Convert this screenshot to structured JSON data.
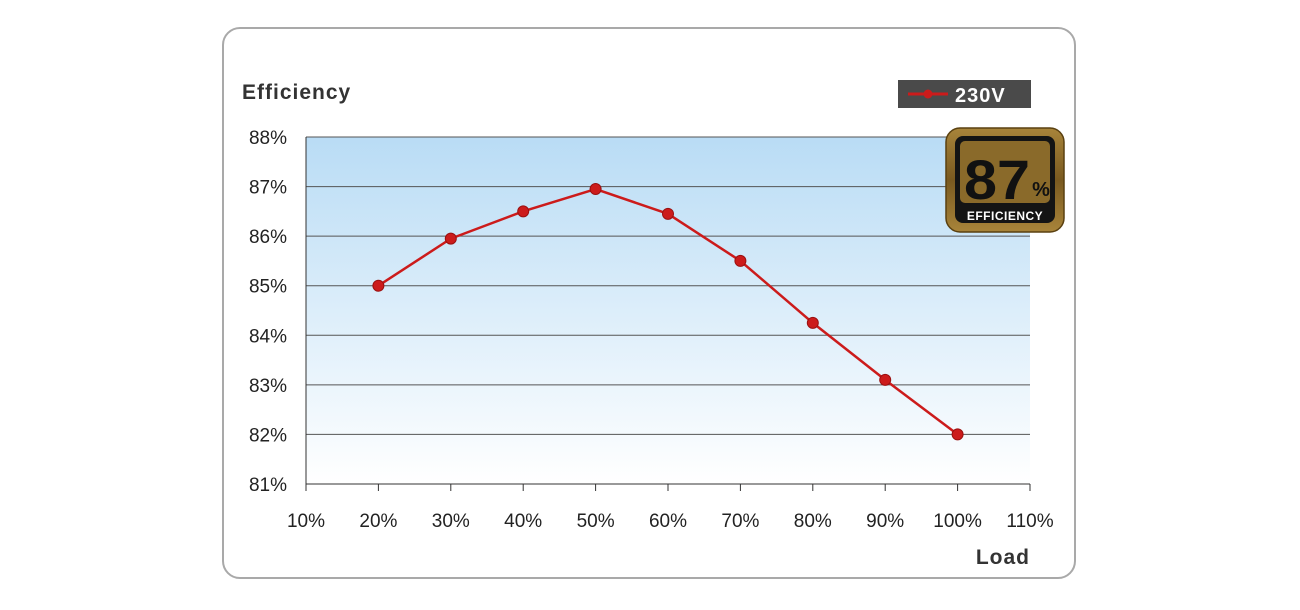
{
  "chart_data": {
    "type": "line",
    "ylabel": "Efficiency",
    "xlabel": "Load",
    "x_ticks": [
      "10%",
      "20%",
      "30%",
      "40%",
      "50%",
      "60%",
      "70%",
      "80%",
      "90%",
      "100%",
      "110%"
    ],
    "y_ticks": [
      "81%",
      "82%",
      "83%",
      "84%",
      "85%",
      "86%",
      "87%",
      "88%"
    ],
    "xlim": [
      10,
      110
    ],
    "ylim": [
      81,
      88
    ],
    "grid": true,
    "legend_position": "top-right",
    "series": [
      {
        "name": "230V",
        "color": "#cc1b1b",
        "x": [
          20,
          30,
          40,
          50,
          60,
          70,
          80,
          90,
          100
        ],
        "y": [
          85.0,
          85.95,
          86.5,
          86.95,
          86.45,
          85.5,
          84.25,
          83.1,
          82.0
        ]
      }
    ]
  },
  "badge": {
    "value": "87",
    "unit": "%",
    "label": "EFFICIENCY"
  },
  "colors": {
    "plot_top": "#b9dcf5",
    "plot_bottom": "#ffffff",
    "gridline": "#555555",
    "badge_gold": "#8a6a2a",
    "legend_bg": "#4a4a4a"
  }
}
